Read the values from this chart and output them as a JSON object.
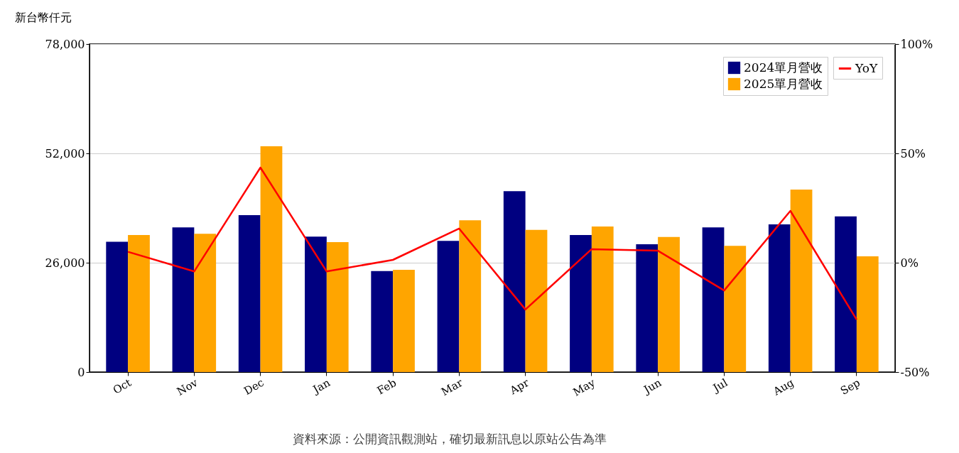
{
  "chart_data": {
    "type": "bar",
    "ylabel": "新台幣仟元",
    "categories": [
      "Oct",
      "Nov",
      "Dec",
      "Jan",
      "Feb",
      "Mar",
      "Apr",
      "May",
      "Jun",
      "Jul",
      "Aug",
      "Sep"
    ],
    "series": [
      {
        "name": "2024單月營收",
        "color": "#000080",
        "values": [
          31000,
          34400,
          37300,
          32200,
          24000,
          31200,
          43000,
          32600,
          30400,
          34400,
          35100,
          37000
        ]
      },
      {
        "name": "2025單月營收",
        "color": "#ffa500",
        "values": [
          32600,
          32900,
          53700,
          30900,
          24300,
          36100,
          33800,
          34600,
          32100,
          30000,
          43400,
          27500
        ]
      },
      {
        "name": "YoY",
        "type": "line",
        "axis": "y2",
        "color": "#ff0000",
        "values": [
          5,
          -4,
          43.5,
          -4,
          1.3,
          15.6,
          -21.4,
          6.2,
          5.5,
          -12.7,
          23.7,
          -26
        ]
      }
    ],
    "ylim": [
      0,
      78000
    ],
    "yticks": [
      {
        "value": 0,
        "label": "0"
      },
      {
        "value": 26000,
        "label": "26,000"
      },
      {
        "value": 52000,
        "label": "52,000"
      },
      {
        "value": 78000,
        "label": "78,000"
      }
    ],
    "y2lim": [
      -50,
      100
    ],
    "y2ticks": [
      {
        "value": -50,
        "label": "-50%"
      },
      {
        "value": 0,
        "label": "0%"
      },
      {
        "value": 50,
        "label": "50%"
      },
      {
        "value": 100,
        "label": "100%"
      }
    ],
    "grid": "y",
    "legend": "top right",
    "annotations": [
      "資料來源：公開資訊觀測站，確切最新訊息以原站公告為準"
    ]
  }
}
